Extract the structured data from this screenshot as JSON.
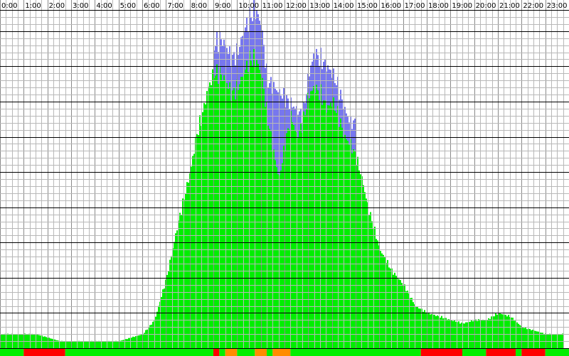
{
  "chart_data": {
    "type": "bar",
    "title": "",
    "xlabel": "",
    "ylabel": "",
    "x_tick_labels": [
      "0:00",
      "1:00",
      "2:00",
      "3:00",
      "4:00",
      "5:00",
      "6:00",
      "7:00",
      "8:00",
      "9:00",
      "10:00",
      "11:00",
      "12:00",
      "13:00",
      "14:00",
      "15:00",
      "16:00",
      "17:00",
      "18:00",
      "19:00",
      "20:00",
      "21:00",
      "22:00",
      "23:00"
    ],
    "xlim": [
      0,
      24
    ],
    "ylim": [
      0,
      48
    ],
    "grid": true,
    "legend": "none",
    "colors": {
      "background": "#ffffff",
      "minor_grid": "#b8b8b8",
      "major_grid": "#000000",
      "main_series": "#00ee00",
      "peak_series": "#7777ee",
      "status_ok": "#00ee00",
      "status_warn": "#ff8c00",
      "status_error": "#ff0000",
      "status_low": "#00ee00"
    },
    "series": [
      {
        "color": "#00ee00",
        "x": [
          0,
          0.5,
          1,
          1.5,
          2,
          2.5,
          3,
          3.5,
          4,
          4.5,
          5,
          5.5,
          6,
          6.5,
          7,
          7.5,
          8,
          8.25,
          8.5,
          8.75,
          9,
          9.25,
          9.5,
          9.75,
          10,
          10.25,
          10.5,
          10.75,
          11,
          11.25,
          11.5,
          11.75,
          12,
          12.25,
          12.5,
          12.75,
          13,
          13.25,
          13.5,
          13.75,
          14,
          14.25,
          14.5,
          14.75,
          15,
          15.25,
          15.5,
          15.75,
          16,
          16.5,
          17,
          17.5,
          18,
          18.5,
          19,
          19.5,
          20,
          20.5,
          21,
          21.5,
          22,
          22.5,
          23,
          23.5
        ],
        "values": [
          2,
          2,
          2,
          2,
          1.5,
          1,
          1,
          1,
          1,
          1,
          1,
          1.5,
          2,
          4,
          10,
          18,
          25,
          30,
          33,
          37,
          39,
          39,
          38,
          36,
          37,
          39,
          41,
          41,
          39,
          33,
          28,
          24,
          29,
          33,
          30,
          32,
          36,
          37,
          36,
          34,
          35,
          33,
          30,
          29,
          27,
          24,
          20,
          17,
          14,
          11,
          9,
          6,
          5,
          4.5,
          4,
          3.5,
          4,
          4,
          5,
          4.5,
          3,
          2.5,
          2,
          2
        ]
      },
      {
        "color": "#7777ee",
        "x": [
          9,
          9.25,
          9.5,
          9.75,
          10,
          10.25,
          10.5,
          10.75,
          11,
          11.25,
          12.75,
          13,
          13.25,
          13.5,
          13.75,
          14,
          14.25,
          14.5,
          14.75
        ],
        "values": [
          43,
          44,
          43,
          41,
          42,
          45,
          47,
          48,
          46,
          38,
          33,
          39,
          42,
          41,
          40,
          39,
          37,
          34,
          32
        ]
      }
    ],
    "status_bar": {
      "segments": [
        {
          "start": 0,
          "end": 1,
          "status": "ok"
        },
        {
          "start": 1,
          "end": 2.75,
          "status": "error"
        },
        {
          "start": 2.75,
          "end": 6,
          "status": "low"
        },
        {
          "start": 6,
          "end": 9,
          "status": "ok"
        },
        {
          "start": 9,
          "end": 9.25,
          "status": "error"
        },
        {
          "start": 9.25,
          "end": 9.5,
          "status": "ok"
        },
        {
          "start": 9.5,
          "end": 10,
          "status": "warn"
        },
        {
          "start": 10,
          "end": 10.75,
          "status": "ok"
        },
        {
          "start": 10.75,
          "end": 11.25,
          "status": "warn"
        },
        {
          "start": 11.25,
          "end": 11.5,
          "status": "ok"
        },
        {
          "start": 11.5,
          "end": 12.25,
          "status": "warn"
        },
        {
          "start": 12.25,
          "end": 17.75,
          "status": "ok"
        },
        {
          "start": 17.75,
          "end": 19.5,
          "status": "error"
        },
        {
          "start": 19.5,
          "end": 20.5,
          "status": "ok"
        },
        {
          "start": 20.5,
          "end": 21.75,
          "status": "error"
        },
        {
          "start": 21.75,
          "end": 22,
          "status": "ok"
        },
        {
          "start": 22,
          "end": 23,
          "status": "error"
        },
        {
          "start": 23,
          "end": 24,
          "status": "ok"
        }
      ]
    }
  }
}
